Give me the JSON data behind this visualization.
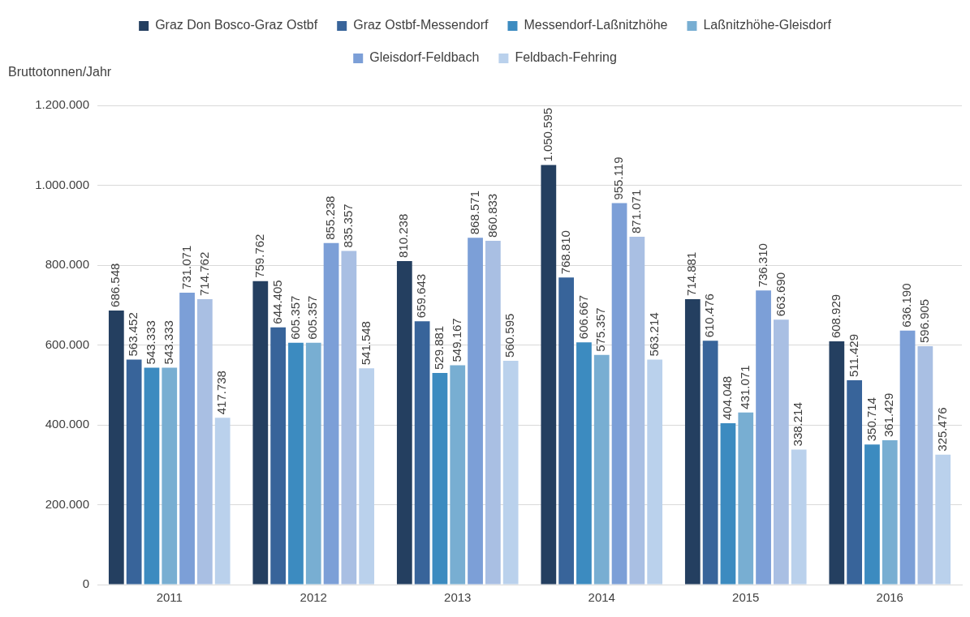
{
  "chart_data": {
    "type": "bar",
    "ylabel": "Bruttotonnen/Jahr",
    "categories": [
      "2011",
      "2012",
      "2013",
      "2014",
      "2015",
      "2016"
    ],
    "series": [
      {
        "name": "Graz Don Bosco-Graz Ostbf",
        "color": "#243f60",
        "values": [
          686548,
          759762,
          810238,
          1050595,
          714881,
          608929
        ],
        "value_labels": [
          "686.548",
          "759.762",
          "810.238",
          "1.050.595",
          "714.881",
          "608.929"
        ]
      },
      {
        "name": "Graz Ostbf-Messendorf",
        "color": "#38649a",
        "values": [
          563452,
          644405,
          659643,
          768810,
          610476,
          511429
        ],
        "value_labels": [
          "563.452",
          "644.405",
          "659.643",
          "768.810",
          "610.476",
          "511.429"
        ]
      },
      {
        "name": "Messendorf-Laßnitzhöhe",
        "color": "#3c8bc0",
        "values": [
          543333,
          605357,
          529881,
          606667,
          404048,
          350714
        ],
        "value_labels": [
          "543.333",
          "605.357",
          "529.881",
          "606.667",
          "404.048",
          "350.714"
        ]
      },
      {
        "name": "Laßnitzhöhe-Gleisdorf",
        "color": "#78aed2",
        "values": [
          543333,
          605357,
          549167,
          575357,
          431071,
          361429
        ],
        "value_labels": [
          "543.333",
          "605.357",
          "549.167",
          "575.357",
          "431.071",
          "361.429"
        ]
      },
      {
        "name": "Gleisdorf-Feldbach",
        "color": "#7c9fd7",
        "values": [
          731071,
          855238,
          868571,
          955119,
          736310,
          636190
        ],
        "value_labels": [
          "731.071",
          "855.238",
          "868.571",
          "955.119",
          "736.310",
          "636.190"
        ]
      },
      {
        "color": "#a9bfe3",
        "values": [
          714762,
          835357,
          860833,
          871071,
          663690,
          596905
        ],
        "value_labels": [
          "714.762",
          "835.357",
          "860.833",
          "871.071",
          "663.690",
          "596.905"
        ]
      },
      {
        "name": "Feldbach-Fehring",
        "color": "#bad1ec",
        "values": [
          417738,
          541548,
          560595,
          563214,
          338214,
          325476
        ],
        "value_labels": [
          "417.738",
          "541.548",
          "560.595",
          "563.214",
          "338.214",
          "325.476"
        ]
      }
    ],
    "ylim": [
      0,
      1200000
    ],
    "yticks": [
      {
        "value": 0,
        "label": "0"
      },
      {
        "value": 200000,
        "label": "200.000"
      },
      {
        "value": 400000,
        "label": "400.000"
      },
      {
        "value": 600000,
        "label": "600.000"
      },
      {
        "value": 800000,
        "label": "800.000"
      },
      {
        "value": 1000000,
        "label": "1.000.000"
      },
      {
        "value": 1200000,
        "label": "1.200.000"
      }
    ],
    "grid": "y",
    "legend": "top"
  }
}
